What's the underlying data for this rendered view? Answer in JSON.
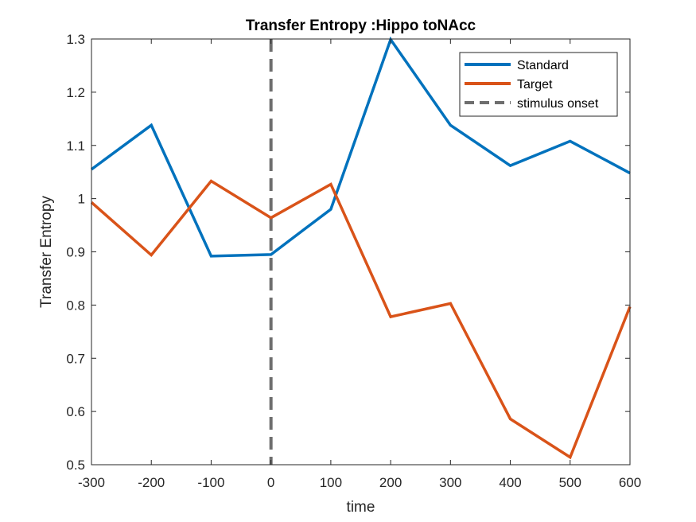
{
  "chart_data": {
    "type": "line",
    "title": "Transfer Entropy :Hippo toNAcc",
    "xlabel": "time",
    "ylabel": "Transfer Entropy",
    "xlim": [
      -300,
      600
    ],
    "ylim": [
      0.5,
      1.3
    ],
    "xticks": [
      -300,
      -200,
      -100,
      0,
      100,
      200,
      300,
      400,
      500,
      600
    ],
    "yticks": [
      0.5,
      0.6,
      0.7,
      0.8,
      0.9,
      1.0,
      1.1,
      1.2,
      1.3
    ],
    "xtick_labels": [
      "-300",
      "-200",
      "-100",
      "0",
      "100",
      "200",
      "300",
      "400",
      "500",
      "600"
    ],
    "ytick_labels": [
      "0.5",
      "0.6",
      "0.7",
      "0.8",
      "0.9",
      "1",
      "1.1",
      "1.2",
      "1.3"
    ],
    "grid": false,
    "legend_position": "top-right",
    "x": [
      -300,
      -200,
      -100,
      0,
      100,
      200,
      300,
      400,
      500,
      600
    ],
    "series": [
      {
        "name": "Standard",
        "color": "#0072BD",
        "values": [
          1.055,
          1.138,
          0.892,
          0.895,
          0.98,
          1.299,
          1.138,
          1.062,
          1.108,
          1.048
        ]
      },
      {
        "name": "Target",
        "color": "#D95319",
        "values": [
          0.993,
          0.894,
          1.033,
          0.964,
          1.027,
          0.778,
          0.803,
          0.586,
          0.514,
          0.797
        ]
      }
    ],
    "vline": {
      "name": "stimulus onset",
      "x": 0,
      "color": "#6E6E6E",
      "style": "dashed"
    }
  }
}
